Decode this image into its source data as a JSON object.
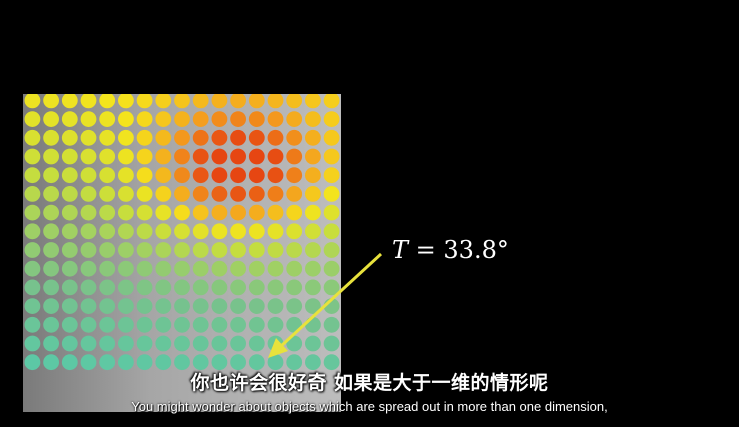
{
  "annotation": {
    "variable": "T",
    "equals": "=",
    "value": "33.8°"
  },
  "subtitles": {
    "chinese": "你也许会很好奇  如果是大于一维的情形呢",
    "english": "You might wonder about objects which are spread out in more than one dimension,"
  },
  "colors": {
    "arrow": "#e8e23c",
    "background": "#000000",
    "label": "#ffffff"
  },
  "heatmap": {
    "rows": 17,
    "cols": 17,
    "description_colors": [
      "#e34a12",
      "#f39a1c",
      "#f3e41b",
      "#cfe03a",
      "#8fc27a",
      "#3fc7b8",
      "#39d3c6"
    ]
  }
}
